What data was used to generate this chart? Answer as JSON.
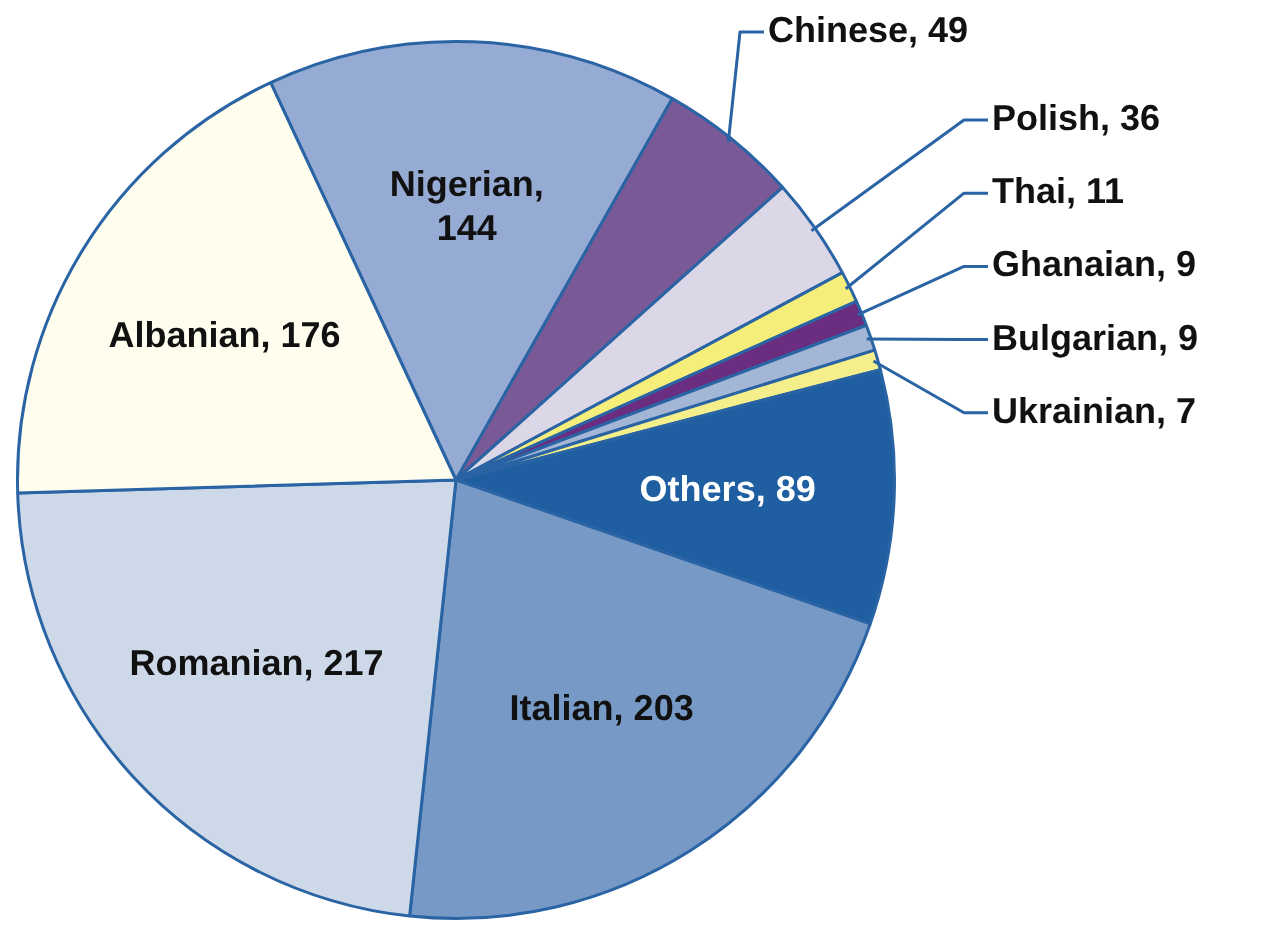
{
  "chart_data": {
    "type": "pie",
    "categories": [
      "Nigerian",
      "Chinese",
      "Polish",
      "Thai",
      "Ghanaian",
      "Bulgarian",
      "Ukrainian",
      "Others",
      "Italian",
      "Romanian",
      "Albanian"
    ],
    "values": [
      144,
      49,
      36,
      11,
      9,
      9,
      7,
      89,
      203,
      217,
      176
    ],
    "colors": [
      "#95abd3",
      "#7a5a96",
      "#dcd7e6",
      "#f5ee7a",
      "#6b2d80",
      "#a4b6d6",
      "#f4ef8a",
      "#1f5ea0",
      "#7799c6",
      "#cdd8e8",
      "#fefdee"
    ],
    "value_labels": [
      ", 144",
      ", 49",
      ", 36",
      ", 11",
      ", 9",
      ", 9",
      ", 7",
      ", 89",
      ", 203",
      ", 217",
      ", 176"
    ],
    "legend": false
  }
}
